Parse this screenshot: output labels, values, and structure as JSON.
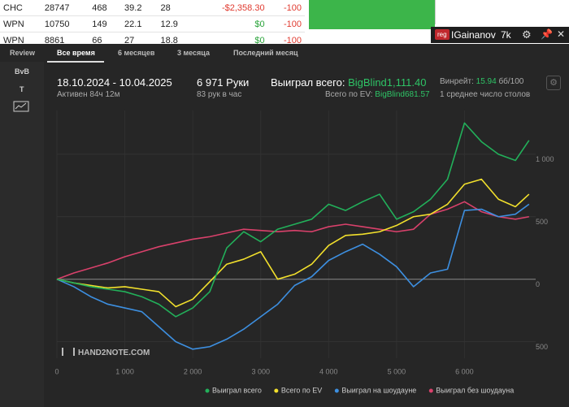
{
  "table": {
    "rows": [
      [
        "CHC",
        "28747",
        "468",
        "39.2",
        "28",
        "-$2,358.30",
        "-100"
      ],
      [
        "WPN",
        "10750",
        "149",
        "22.1",
        "12.9",
        "$0",
        "-100"
      ],
      [
        "WPN",
        "8861",
        "66",
        "27",
        "18.8",
        "$0",
        "-100"
      ]
    ]
  },
  "user": {
    "badge": "reg",
    "name": "IGainanov",
    "hands": "7k"
  },
  "tabs": [
    "Review",
    "Все время",
    "6 месяцев",
    "3 месяца",
    "Последний месяц"
  ],
  "active_tab": 1,
  "sidebar": [
    "BvB",
    "T"
  ],
  "stats": {
    "period": "18.10.2024 - 10.04.2025",
    "active": "Активен 84ч 12м",
    "hands": "6 971 Руки",
    "hands_per_hour": "83 рук в час",
    "won_label": "Выиграл всего:",
    "won_value": "BigBlind1,111.40",
    "ev_label": "Всего по EV:",
    "ev_value": "BigBlind681.57",
    "winrate_label": "Винрейт:",
    "winrate_value": "15.94",
    "winrate_unit": "бб/100",
    "tables": "1 среднее число столов"
  },
  "watermark": "HAND2NOTE.COM",
  "chart_data": {
    "type": "line",
    "x": [
      0,
      250,
      500,
      750,
      1000,
      1250,
      1500,
      1750,
      2000,
      2250,
      2500,
      2750,
      3000,
      3250,
      3500,
      3750,
      4000,
      4250,
      4500,
      4750,
      5000,
      5250,
      5500,
      5750,
      6000,
      6250,
      6500,
      6750,
      6950
    ],
    "series": [
      {
        "name": "Выиграл всего",
        "color": "#22b05a",
        "values": [
          0,
          -30,
          -60,
          -80,
          -100,
          -140,
          -200,
          -300,
          -230,
          -100,
          250,
          380,
          300,
          400,
          440,
          480,
          600,
          550,
          620,
          680,
          480,
          540,
          640,
          800,
          1250,
          1100,
          1000,
          950,
          1111
        ]
      },
      {
        "name": "Всего по EV",
        "color": "#f2e02c",
        "values": [
          0,
          -30,
          -50,
          -70,
          -60,
          -80,
          -100,
          -220,
          -160,
          -20,
          120,
          160,
          220,
          0,
          40,
          120,
          270,
          350,
          360,
          380,
          430,
          500,
          520,
          600,
          760,
          800,
          640,
          580,
          680
        ]
      },
      {
        "name": "Выиграл на шоудауне",
        "color": "#3d8fe0",
        "values": [
          0,
          -60,
          -140,
          -200,
          -230,
          -260,
          -380,
          -500,
          -560,
          -540,
          -480,
          -400,
          -300,
          -200,
          -50,
          20,
          150,
          220,
          280,
          200,
          100,
          -60,
          50,
          80,
          550,
          560,
          500,
          520,
          600
        ]
      },
      {
        "name": "Выиграл без шоудауна",
        "color": "#d9416b",
        "values": [
          0,
          50,
          90,
          130,
          180,
          220,
          260,
          290,
          320,
          340,
          370,
          400,
          390,
          380,
          390,
          380,
          420,
          440,
          420,
          400,
          380,
          400,
          520,
          560,
          620,
          540,
          500,
          480,
          500
        ]
      }
    ],
    "xlim": [
      0,
      7000
    ],
    "xticks": [
      0,
      {
        "value": 1000,
        "label": "1 000"
      },
      {
        "value": 2000,
        "label": "2 000"
      },
      {
        "value": 3000,
        "label": "3 000"
      },
      {
        "value": 4000,
        "label": "4 000"
      },
      {
        "value": 5000,
        "label": "5 000"
      },
      {
        "value": 6000,
        "label": "6 000"
      }
    ],
    "ylim": [
      -600,
      1350
    ],
    "yticks": [
      {
        "value": -500,
        "label": "500"
      },
      0,
      500,
      {
        "value": 1000,
        "label": "1 000"
      }
    ],
    "grid": true
  }
}
